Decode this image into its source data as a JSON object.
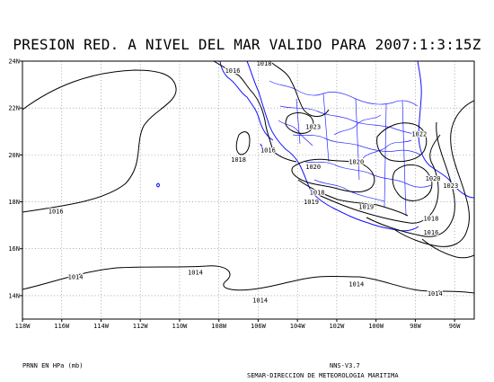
{
  "title": "PRESION RED. A NIVEL DEL MAR VALIDO PARA 2007:1:3:15Z",
  "lat_labels": [
    "24N",
    "22N",
    "20N",
    "18N",
    "16N",
    "14N"
  ],
  "lon_labels": [
    "118W",
    "116W",
    "114W",
    "112W",
    "110W",
    "108W",
    "106W",
    "104W",
    "102W",
    "100W",
    "98W",
    "96W"
  ],
  "map": {
    "lat_range": [
      13,
      24
    ],
    "lon_range": [
      -118,
      -95
    ],
    "grid": "dotted",
    "contour_color": "#000000",
    "coastline_color": "#0000ff"
  },
  "isobar_labels": [
    {
      "text": "1018",
      "lon": -105.7,
      "lat": 23.9
    },
    {
      "text": "1016",
      "lon": -107.3,
      "lat": 23.6
    },
    {
      "text": "1023",
      "lon": -103.2,
      "lat": 21.2
    },
    {
      "text": "1022",
      "lon": -97.8,
      "lat": 20.9
    },
    {
      "text": "1018",
      "lon": -107.0,
      "lat": 19.8
    },
    {
      "text": "1016",
      "lon": -105.5,
      "lat": 20.2
    },
    {
      "text": "1020",
      "lon": -101.0,
      "lat": 19.7
    },
    {
      "text": "1020",
      "lon": -103.2,
      "lat": 19.5
    },
    {
      "text": "1020",
      "lon": -97.1,
      "lat": 19.0
    },
    {
      "text": "1023",
      "lon": -96.2,
      "lat": 18.7
    },
    {
      "text": "1018",
      "lon": -103.0,
      "lat": 18.4
    },
    {
      "text": "1019",
      "lon": -103.3,
      "lat": 18.0
    },
    {
      "text": "1019",
      "lon": -100.5,
      "lat": 17.8
    },
    {
      "text": "1018",
      "lon": -97.2,
      "lat": 17.3
    },
    {
      "text": "1016",
      "lon": -97.2,
      "lat": 16.7
    },
    {
      "text": "1016",
      "lon": -116.3,
      "lat": 17.6
    },
    {
      "text": "1014",
      "lon": -115.3,
      "lat": 14.8
    },
    {
      "text": "1014",
      "lon": -109.2,
      "lat": 15.0
    },
    {
      "text": "1014",
      "lon": -105.9,
      "lat": 13.8
    },
    {
      "text": "1014",
      "lon": -101.0,
      "lat": 14.5
    },
    {
      "text": "1014",
      "lon": -97.0,
      "lat": 14.1
    }
  ],
  "footer": {
    "units": "PRNN EN HPa (mb)",
    "version": "NNS-V3.7",
    "org": "SEMAR-DIRECCION DE METEOROLOGIA MARITIMA"
  }
}
